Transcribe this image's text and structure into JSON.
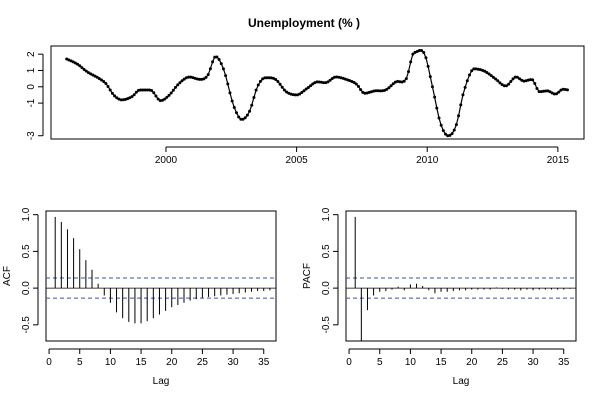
{
  "chart_data": [
    {
      "type": "line",
      "title": "Unemployment (% )",
      "xlabel": "",
      "ylabel": "",
      "xlim": [
        1995.6,
        2016.0
      ],
      "ylim": [
        -3.2,
        2.5
      ],
      "xticks": [
        2000,
        2005,
        2010,
        2015
      ],
      "yticks": [
        -3,
        -1,
        0,
        1,
        2
      ],
      "grid": false,
      "points_shown": true,
      "knots": [
        [
          1996.2,
          1.7
        ],
        [
          1996.6,
          1.4
        ],
        [
          1997.0,
          0.9
        ],
        [
          1997.4,
          0.55
        ],
        [
          1997.7,
          0.2
        ],
        [
          1998.0,
          -0.5
        ],
        [
          1998.3,
          -0.8
        ],
        [
          1998.7,
          -0.6
        ],
        [
          1999.0,
          -0.2
        ],
        [
          1999.4,
          -0.2
        ],
        [
          1999.8,
          -0.85
        ],
        [
          2000.1,
          -0.55
        ],
        [
          2000.5,
          0.2
        ],
        [
          2000.9,
          0.6
        ],
        [
          2001.3,
          0.45
        ],
        [
          2001.6,
          0.7
        ],
        [
          2001.9,
          1.85
        ],
        [
          2002.2,
          1.1
        ],
        [
          2002.6,
          -1.2
        ],
        [
          2002.9,
          -2.0
        ],
        [
          2003.2,
          -1.5
        ],
        [
          2003.5,
          0.0
        ],
        [
          2003.8,
          0.55
        ],
        [
          2004.2,
          0.45
        ],
        [
          2004.6,
          -0.3
        ],
        [
          2005.0,
          -0.5
        ],
        [
          2005.4,
          -0.1
        ],
        [
          2005.8,
          0.3
        ],
        [
          2006.1,
          0.25
        ],
        [
          2006.5,
          0.6
        ],
        [
          2006.9,
          0.45
        ],
        [
          2007.3,
          0.15
        ],
        [
          2007.6,
          -0.4
        ],
        [
          2008.0,
          -0.25
        ],
        [
          2008.4,
          -0.2
        ],
        [
          2008.8,
          0.3
        ],
        [
          2009.2,
          0.5
        ],
        [
          2009.5,
          2.1
        ],
        [
          2009.9,
          2.0
        ],
        [
          2010.2,
          0.0
        ],
        [
          2010.5,
          -2.2
        ],
        [
          2010.8,
          -3.0
        ],
        [
          2011.1,
          -2.4
        ],
        [
          2011.4,
          -0.3
        ],
        [
          2011.8,
          1.1
        ],
        [
          2012.2,
          0.95
        ],
        [
          2012.6,
          0.5
        ],
        [
          2013.0,
          0.05
        ],
        [
          2013.4,
          0.6
        ],
        [
          2013.7,
          0.35
        ],
        [
          2014.0,
          0.45
        ],
        [
          2014.3,
          -0.3
        ],
        [
          2014.6,
          -0.25
        ],
        [
          2014.9,
          -0.45
        ],
        [
          2015.2,
          -0.15
        ],
        [
          2015.4,
          -0.2
        ]
      ]
    },
    {
      "type": "bar",
      "title": "",
      "xlabel": "Lag",
      "ylabel": "ACF",
      "xlim": [
        -0.5,
        37
      ],
      "ylim": [
        -0.72,
        1.05
      ],
      "xticks": [
        0,
        5,
        10,
        15,
        20,
        25,
        30,
        35
      ],
      "yticks": [
        -0.5,
        0.0,
        0.5,
        1.0
      ],
      "confidence_band": 0.137,
      "lags": [
        1,
        2,
        3,
        4,
        5,
        6,
        7,
        8,
        9,
        10,
        11,
        12,
        13,
        14,
        15,
        16,
        17,
        18,
        19,
        20,
        21,
        22,
        23,
        24,
        25,
        26,
        27,
        28,
        29,
        30,
        31,
        32,
        33,
        34,
        35,
        36
      ],
      "values": [
        0.97,
        0.9,
        0.8,
        0.68,
        0.53,
        0.38,
        0.25,
        0.06,
        -0.1,
        -0.2,
        -0.33,
        -0.41,
        -0.46,
        -0.48,
        -0.48,
        -0.45,
        -0.41,
        -0.36,
        -0.31,
        -0.26,
        -0.23,
        -0.2,
        -0.17,
        -0.15,
        -0.13,
        -0.12,
        -0.11,
        -0.1,
        -0.09,
        -0.08,
        -0.07,
        -0.06,
        -0.05,
        -0.04,
        -0.04,
        -0.03
      ]
    },
    {
      "type": "bar",
      "title": "",
      "xlabel": "Lag",
      "ylabel": "PACF",
      "xlim": [
        -0.5,
        37
      ],
      "ylim": [
        -0.72,
        1.05
      ],
      "xticks": [
        0,
        5,
        10,
        15,
        20,
        25,
        30,
        35
      ],
      "yticks": [
        -0.5,
        0.0,
        0.5,
        1.0
      ],
      "confidence_band": 0.137,
      "lags": [
        1,
        2,
        3,
        4,
        5,
        6,
        7,
        8,
        9,
        10,
        11,
        12,
        13,
        14,
        15,
        16,
        17,
        18,
        19,
        20,
        21,
        22,
        23,
        24,
        25,
        26,
        27,
        28,
        29,
        30,
        31,
        32,
        33,
        34,
        35,
        36
      ],
      "values": [
        0.97,
        -0.72,
        -0.3,
        -0.1,
        -0.05,
        -0.04,
        -0.02,
        0.02,
        -0.03,
        0.05,
        0.06,
        0.03,
        -0.03,
        -0.07,
        -0.05,
        -0.05,
        -0.04,
        -0.03,
        -0.03,
        -0.02,
        -0.02,
        -0.02,
        -0.02,
        0.01,
        -0.01,
        -0.02,
        -0.02,
        -0.03,
        -0.02,
        -0.03,
        -0.02,
        -0.02,
        -0.02,
        -0.02,
        -0.02,
        -0.01
      ]
    }
  ]
}
